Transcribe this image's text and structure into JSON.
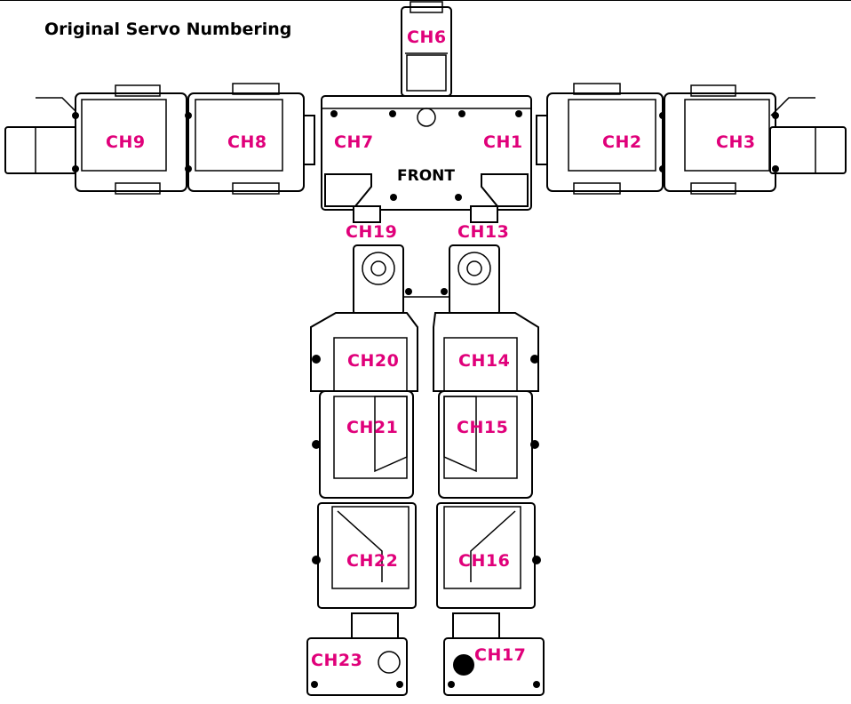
{
  "title": "Original Servo Numbering",
  "front_label": "FRONT",
  "colors": {
    "label": "#e0007a",
    "line": "#000000",
    "background": "#ffffff"
  },
  "channels": {
    "ch6": "CH6",
    "ch9": "CH9",
    "ch8": "CH8",
    "ch7": "CH7",
    "ch1": "CH1",
    "ch2": "CH2",
    "ch3": "CH3",
    "ch19": "CH19",
    "ch13": "CH13",
    "ch20": "CH20",
    "ch14": "CH14",
    "ch21": "CH21",
    "ch15": "CH15",
    "ch22": "CH22",
    "ch16": "CH16",
    "ch23": "CH23",
    "ch17": "CH17"
  }
}
